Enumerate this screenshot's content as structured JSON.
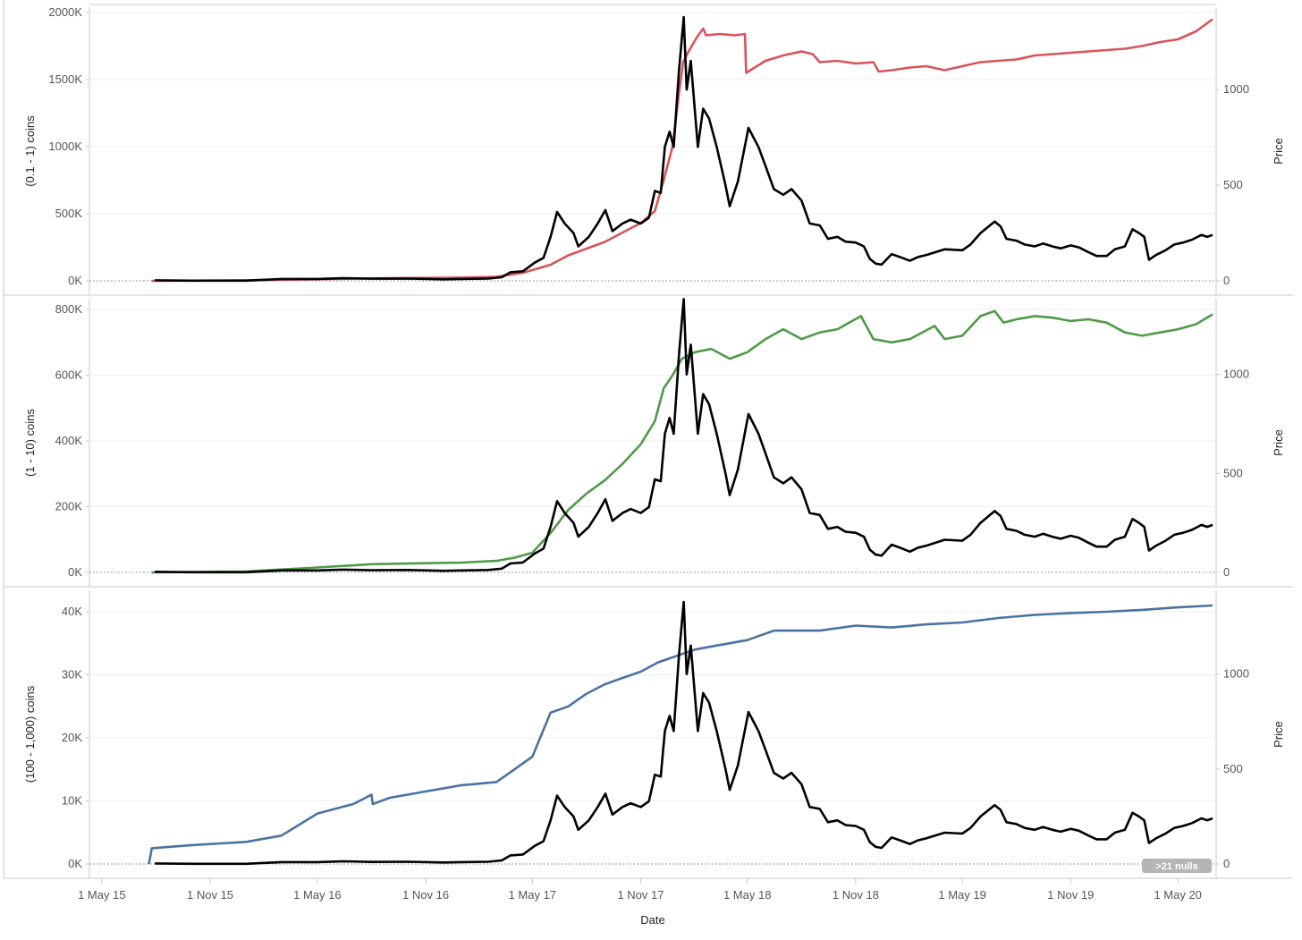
{
  "x_axis": {
    "title": "Date",
    "ticks": [
      {
        "date": "2015-05-01",
        "label": "1 May 15"
      },
      {
        "date": "2015-11-01",
        "label": "1 Nov 15"
      },
      {
        "date": "2016-05-01",
        "label": "1 May 16"
      },
      {
        "date": "2016-11-01",
        "label": "1 Nov 16"
      },
      {
        "date": "2017-05-01",
        "label": "1 May 17"
      },
      {
        "date": "2017-11-01",
        "label": "1 Nov 17"
      },
      {
        "date": "2018-05-01",
        "label": "1 May 18"
      },
      {
        "date": "2018-11-01",
        "label": "1 Nov 18"
      },
      {
        "date": "2019-05-01",
        "label": "1 May 19"
      },
      {
        "date": "2019-11-01",
        "label": "1 Nov 19"
      },
      {
        "date": "2020-05-01",
        "label": "1 May 20"
      }
    ],
    "range": [
      "2015-04-10",
      "2020-07-05"
    ]
  },
  "nulls_badge": ">21 nulls",
  "colors": {
    "price": "#000000",
    "panel1": "#d9545a",
    "panel2": "#4e9a48",
    "panel3": "#4a72a2",
    "grid": "#eeeeee",
    "zero_line": "#9a9a9a",
    "border": "#c8c8c8"
  },
  "price_series": [
    [
      "2015-07-30",
      3
    ],
    [
      "2015-10-01",
      0.8
    ],
    [
      "2016-01-01",
      1
    ],
    [
      "2016-03-01",
      10
    ],
    [
      "2016-05-01",
      10
    ],
    [
      "2016-06-15",
      14
    ],
    [
      "2016-08-01",
      11
    ],
    [
      "2016-10-01",
      12
    ],
    [
      "2016-12-01",
      8
    ],
    [
      "2017-01-01",
      10
    ],
    [
      "2017-02-15",
      12
    ],
    [
      "2017-03-10",
      19
    ],
    [
      "2017-03-25",
      45
    ],
    [
      "2017-04-15",
      50
    ],
    [
      "2017-05-05",
      95
    ],
    [
      "2017-05-20",
      120
    ],
    [
      "2017-06-01",
      230
    ],
    [
      "2017-06-12",
      360
    ],
    [
      "2017-06-25",
      300
    ],
    [
      "2017-07-10",
      250
    ],
    [
      "2017-07-18",
      180
    ],
    [
      "2017-08-05",
      230
    ],
    [
      "2017-08-20",
      300
    ],
    [
      "2017-09-02",
      370
    ],
    [
      "2017-09-14",
      260
    ],
    [
      "2017-10-01",
      300
    ],
    [
      "2017-10-15",
      320
    ],
    [
      "2017-11-01",
      300
    ],
    [
      "2017-11-15",
      330
    ],
    [
      "2017-11-25",
      470
    ],
    [
      "2017-12-05",
      460
    ],
    [
      "2017-12-12",
      700
    ],
    [
      "2017-12-20",
      780
    ],
    [
      "2017-12-27",
      700
    ],
    [
      "2018-01-05",
      1100
    ],
    [
      "2018-01-13",
      1380
    ],
    [
      "2018-01-18",
      1000
    ],
    [
      "2018-01-25",
      1150
    ],
    [
      "2018-02-06",
      700
    ],
    [
      "2018-02-15",
      900
    ],
    [
      "2018-02-25",
      850
    ],
    [
      "2018-03-10",
      700
    ],
    [
      "2018-03-25",
      500
    ],
    [
      "2018-04-01",
      390
    ],
    [
      "2018-04-15",
      520
    ],
    [
      "2018-05-03",
      800
    ],
    [
      "2018-05-20",
      700
    ],
    [
      "2018-06-01",
      600
    ],
    [
      "2018-06-15",
      480
    ],
    [
      "2018-07-01",
      450
    ],
    [
      "2018-07-15",
      480
    ],
    [
      "2018-08-01",
      420
    ],
    [
      "2018-08-15",
      300
    ],
    [
      "2018-09-01",
      290
    ],
    [
      "2018-09-15",
      220
    ],
    [
      "2018-10-01",
      230
    ],
    [
      "2018-10-15",
      205
    ],
    [
      "2018-11-01",
      200
    ],
    [
      "2018-11-15",
      180
    ],
    [
      "2018-11-25",
      115
    ],
    [
      "2018-12-05",
      90
    ],
    [
      "2018-12-15",
      85
    ],
    [
      "2019-01-01",
      140
    ],
    [
      "2019-01-15",
      125
    ],
    [
      "2019-02-01",
      105
    ],
    [
      "2019-02-15",
      125
    ],
    [
      "2019-03-01",
      135
    ],
    [
      "2019-04-01",
      165
    ],
    [
      "2019-05-01",
      160
    ],
    [
      "2019-05-15",
      190
    ],
    [
      "2019-06-01",
      250
    ],
    [
      "2019-06-25",
      310
    ],
    [
      "2019-07-05",
      285
    ],
    [
      "2019-07-15",
      220
    ],
    [
      "2019-08-01",
      210
    ],
    [
      "2019-08-15",
      190
    ],
    [
      "2019-09-01",
      180
    ],
    [
      "2019-09-15",
      195
    ],
    [
      "2019-10-01",
      180
    ],
    [
      "2019-10-15",
      170
    ],
    [
      "2019-11-01",
      185
    ],
    [
      "2019-11-15",
      175
    ],
    [
      "2019-12-01",
      150
    ],
    [
      "2019-12-15",
      130
    ],
    [
      "2020-01-01",
      130
    ],
    [
      "2020-01-15",
      165
    ],
    [
      "2020-02-01",
      180
    ],
    [
      "2020-02-14",
      270
    ],
    [
      "2020-02-25",
      250
    ],
    [
      "2020-03-05",
      230
    ],
    [
      "2020-03-13",
      110
    ],
    [
      "2020-03-25",
      135
    ],
    [
      "2020-04-10",
      160
    ],
    [
      "2020-04-25",
      190
    ],
    [
      "2020-05-10",
      200
    ],
    [
      "2020-05-25",
      215
    ],
    [
      "2020-06-10",
      240
    ],
    [
      "2020-06-20",
      230
    ],
    [
      "2020-06-29",
      240
    ]
  ],
  "panels": [
    {
      "ylabel": "(0.1 - 1) coins",
      "ylabel2": "Price",
      "ylim": [
        0,
        2000000
      ],
      "yticks": [
        {
          "value": 0,
          "label": "0K"
        },
        {
          "value": 500000,
          "label": "500K"
        },
        {
          "value": 1000000,
          "label": "1000K"
        },
        {
          "value": 1500000,
          "label": "1500K"
        },
        {
          "value": 2000000,
          "label": "2000K"
        }
      ],
      "y2lim": [
        0,
        1450
      ],
      "y2ticks": [
        {
          "value": 0,
          "label": "0"
        },
        {
          "value": 500,
          "label": "500"
        },
        {
          "value": 1000,
          "label": "1000"
        }
      ],
      "series": [
        [
          "2015-07-25",
          0
        ],
        [
          "2016-01-01",
          4000
        ],
        [
          "2016-05-01",
          12000
        ],
        [
          "2016-09-01",
          20000
        ],
        [
          "2017-01-01",
          25000
        ],
        [
          "2017-03-01",
          30000
        ],
        [
          "2017-04-15",
          60000
        ],
        [
          "2017-06-01",
          120000
        ],
        [
          "2017-07-01",
          190000
        ],
        [
          "2017-08-01",
          240000
        ],
        [
          "2017-09-01",
          290000
        ],
        [
          "2017-10-01",
          360000
        ],
        [
          "2017-11-01",
          430000
        ],
        [
          "2017-11-25",
          520000
        ],
        [
          "2017-12-10",
          750000
        ],
        [
          "2017-12-25",
          1000000
        ],
        [
          "2018-01-05",
          1400000
        ],
        [
          "2018-01-12",
          1630000
        ],
        [
          "2018-01-20",
          1700000
        ],
        [
          "2018-02-05",
          1820000
        ],
        [
          "2018-02-15",
          1880000
        ],
        [
          "2018-02-20",
          1830000
        ],
        [
          "2018-03-15",
          1840000
        ],
        [
          "2018-04-10",
          1830000
        ],
        [
          "2018-04-27",
          1840000
        ],
        [
          "2018-04-29",
          1550000
        ],
        [
          "2018-05-10",
          1580000
        ],
        [
          "2018-06-01",
          1640000
        ],
        [
          "2018-07-01",
          1680000
        ],
        [
          "2018-08-01",
          1710000
        ],
        [
          "2018-08-20",
          1690000
        ],
        [
          "2018-09-01",
          1630000
        ],
        [
          "2018-10-01",
          1640000
        ],
        [
          "2018-11-01",
          1620000
        ],
        [
          "2018-12-01",
          1630000
        ],
        [
          "2018-12-10",
          1560000
        ],
        [
          "2019-01-01",
          1570000
        ],
        [
          "2019-02-01",
          1590000
        ],
        [
          "2019-03-01",
          1600000
        ],
        [
          "2019-04-01",
          1570000
        ],
        [
          "2019-05-01",
          1600000
        ],
        [
          "2019-06-01",
          1630000
        ],
        [
          "2019-07-01",
          1640000
        ],
        [
          "2019-08-01",
          1650000
        ],
        [
          "2019-09-01",
          1680000
        ],
        [
          "2019-10-01",
          1690000
        ],
        [
          "2019-11-01",
          1700000
        ],
        [
          "2019-12-01",
          1710000
        ],
        [
          "2020-01-01",
          1720000
        ],
        [
          "2020-02-01",
          1730000
        ],
        [
          "2020-03-01",
          1750000
        ],
        [
          "2020-04-01",
          1780000
        ],
        [
          "2020-05-01",
          1800000
        ],
        [
          "2020-06-01",
          1860000
        ],
        [
          "2020-06-29",
          1950000
        ]
      ]
    },
    {
      "ylabel": "(1 - 10) coins",
      "ylabel2": "Price",
      "ylim": [
        0,
        800000
      ],
      "yticks": [
        {
          "value": 0,
          "label": "0K"
        },
        {
          "value": 200000,
          "label": "200K"
        },
        {
          "value": 400000,
          "label": "400K"
        },
        {
          "value": 600000,
          "label": "600K"
        },
        {
          "value": 800000,
          "label": "800K"
        }
      ],
      "y2lim": [
        0,
        1400
      ],
      "y2ticks": [
        {
          "value": 0,
          "label": "0"
        },
        {
          "value": 500,
          "label": "500"
        },
        {
          "value": 1000,
          "label": "1000"
        }
      ],
      "series": [
        [
          "2015-07-25",
          0
        ],
        [
          "2016-01-01",
          3000
        ],
        [
          "2016-05-01",
          15000
        ],
        [
          "2016-08-01",
          25000
        ],
        [
          "2016-11-01",
          28000
        ],
        [
          "2017-01-01",
          30000
        ],
        [
          "2017-03-01",
          35000
        ],
        [
          "2017-04-01",
          45000
        ],
        [
          "2017-05-01",
          60000
        ],
        [
          "2017-06-01",
          120000
        ],
        [
          "2017-07-01",
          190000
        ],
        [
          "2017-08-01",
          240000
        ],
        [
          "2017-09-01",
          280000
        ],
        [
          "2017-10-01",
          330000
        ],
        [
          "2017-11-01",
          390000
        ],
        [
          "2017-11-25",
          460000
        ],
        [
          "2017-12-10",
          560000
        ],
        [
          "2017-12-25",
          600000
        ],
        [
          "2018-01-10",
          650000
        ],
        [
          "2018-02-01",
          670000
        ],
        [
          "2018-03-01",
          680000
        ],
        [
          "2018-04-01",
          650000
        ],
        [
          "2018-05-01",
          670000
        ],
        [
          "2018-06-01",
          710000
        ],
        [
          "2018-07-01",
          740000
        ],
        [
          "2018-08-01",
          710000
        ],
        [
          "2018-09-01",
          730000
        ],
        [
          "2018-10-01",
          740000
        ],
        [
          "2018-11-10",
          780000
        ],
        [
          "2018-12-01",
          710000
        ],
        [
          "2019-01-01",
          700000
        ],
        [
          "2019-02-01",
          710000
        ],
        [
          "2019-03-15",
          750000
        ],
        [
          "2019-04-01",
          710000
        ],
        [
          "2019-05-01",
          720000
        ],
        [
          "2019-06-01",
          780000
        ],
        [
          "2019-06-25",
          795000
        ],
        [
          "2019-07-10",
          760000
        ],
        [
          "2019-08-01",
          770000
        ],
        [
          "2019-09-01",
          780000
        ],
        [
          "2019-10-01",
          775000
        ],
        [
          "2019-11-01",
          765000
        ],
        [
          "2019-12-01",
          770000
        ],
        [
          "2020-01-01",
          760000
        ],
        [
          "2020-02-01",
          730000
        ],
        [
          "2020-03-01",
          720000
        ],
        [
          "2020-04-01",
          730000
        ],
        [
          "2020-05-01",
          740000
        ],
        [
          "2020-06-01",
          755000
        ],
        [
          "2020-06-29",
          785000
        ]
      ]
    },
    {
      "ylabel": "(100 - 1,000) coins",
      "ylabel2": "Price",
      "ylim": [
        0,
        40000
      ],
      "yticks": [
        {
          "value": 0,
          "label": "0K"
        },
        {
          "value": 10000,
          "label": "10K"
        },
        {
          "value": 20000,
          "label": "20K"
        },
        {
          "value": 30000,
          "label": "30K"
        },
        {
          "value": 40000,
          "label": "40K"
        }
      ],
      "y2lim": [
        0,
        1460
      ],
      "y2ticks": [
        {
          "value": 0,
          "label": "0"
        },
        {
          "value": 500,
          "label": "500"
        },
        {
          "value": 1000,
          "label": "1000"
        }
      ],
      "series": [
        [
          "2015-07-20",
          0
        ],
        [
          "2015-07-25",
          2500
        ],
        [
          "2015-10-01",
          3000
        ],
        [
          "2016-01-01",
          3500
        ],
        [
          "2016-03-01",
          4500
        ],
        [
          "2016-05-01",
          8000
        ],
        [
          "2016-07-01",
          9500
        ],
        [
          "2016-08-01",
          11000
        ],
        [
          "2016-08-03",
          9500
        ],
        [
          "2016-09-01",
          10500
        ],
        [
          "2016-11-01",
          11500
        ],
        [
          "2017-01-01",
          12500
        ],
        [
          "2017-03-01",
          13000
        ],
        [
          "2017-05-01",
          17000
        ],
        [
          "2017-06-01",
          24000
        ],
        [
          "2017-07-01",
          25000
        ],
        [
          "2017-08-01",
          27000
        ],
        [
          "2017-09-01",
          28500
        ],
        [
          "2017-10-01",
          29500
        ],
        [
          "2017-11-01",
          30500
        ],
        [
          "2017-12-01",
          32000
        ],
        [
          "2018-01-01",
          33000
        ],
        [
          "2018-02-01",
          34000
        ],
        [
          "2018-03-01",
          34500
        ],
        [
          "2018-05-01",
          35500
        ],
        [
          "2018-06-15",
          37000
        ],
        [
          "2018-07-01",
          37000
        ],
        [
          "2018-09-01",
          37000
        ],
        [
          "2018-11-01",
          37800
        ],
        [
          "2019-01-01",
          37500
        ],
        [
          "2019-03-01",
          38000
        ],
        [
          "2019-05-01",
          38300
        ],
        [
          "2019-07-01",
          39000
        ],
        [
          "2019-09-01",
          39500
        ],
        [
          "2019-11-01",
          39800
        ],
        [
          "2020-01-01",
          40000
        ],
        [
          "2020-03-01",
          40300
        ],
        [
          "2020-05-01",
          40700
        ],
        [
          "2020-06-29",
          41000
        ]
      ]
    }
  ],
  "chart_data": [
    {
      "type": "line",
      "xlabel": "Date",
      "ylabel": "(0.1 - 1) coins",
      "y2label": "Price",
      "ylim": [
        0,
        2000000
      ],
      "y2lim": [
        0,
        1450
      ],
      "series_ref": "panels.0.series",
      "price_ref": "price_series"
    },
    {
      "type": "line",
      "xlabel": "Date",
      "ylabel": "(1 - 10) coins",
      "y2label": "Price",
      "ylim": [
        0,
        800000
      ],
      "y2lim": [
        0,
        1400
      ],
      "series_ref": "panels.1.series",
      "price_ref": "price_series"
    },
    {
      "type": "line",
      "xlabel": "Date",
      "ylabel": "(100 - 1,000) coins",
      "y2label": "Price",
      "ylim": [
        0,
        40000
      ],
      "y2lim": [
        0,
        1460
      ],
      "series_ref": "panels.2.series",
      "price_ref": "price_series"
    }
  ]
}
